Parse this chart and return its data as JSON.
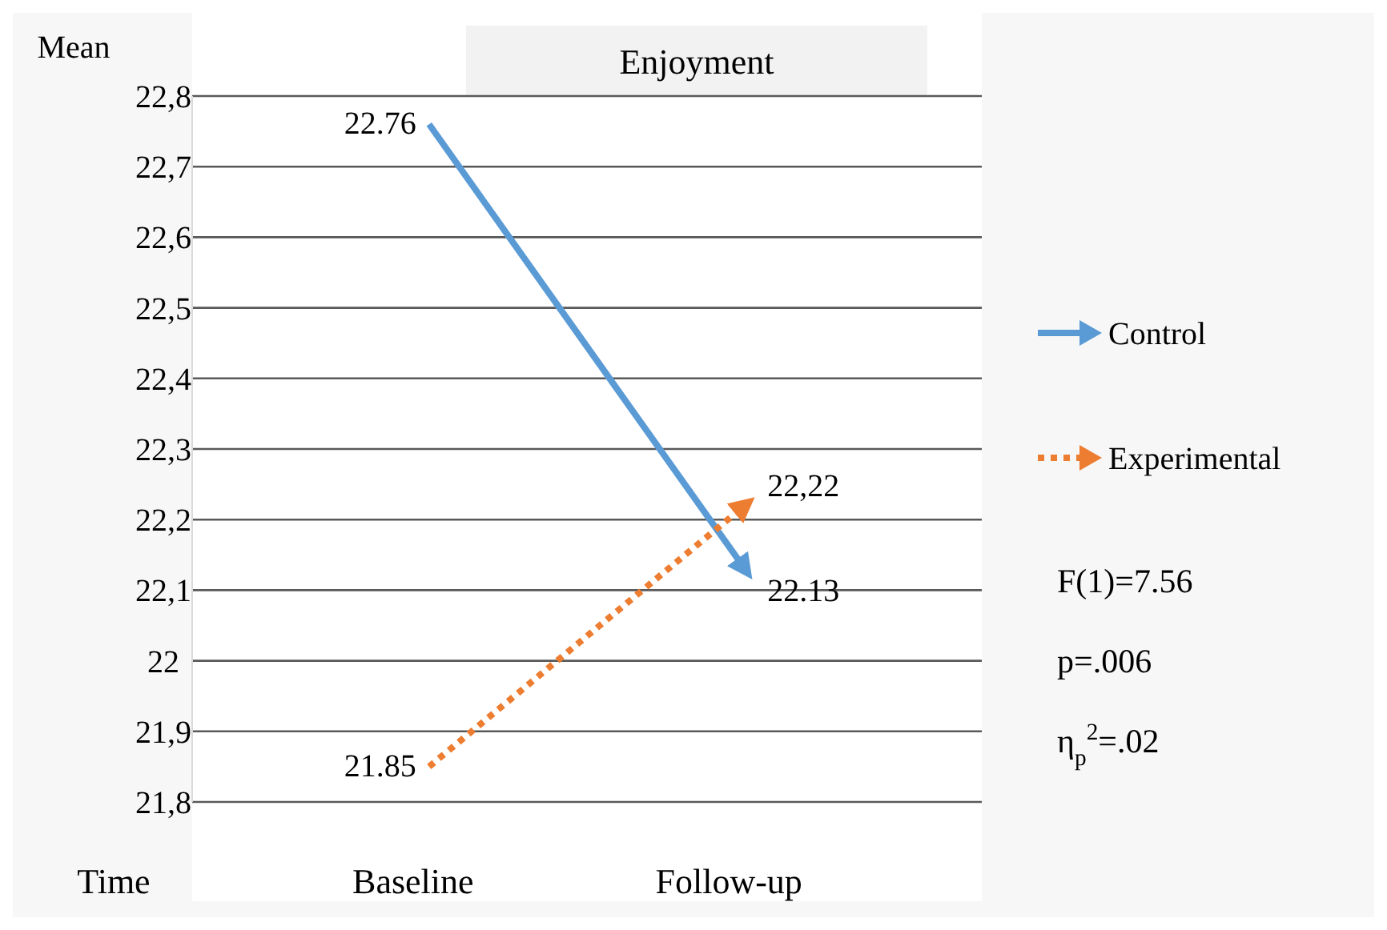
{
  "chart_data": {
    "type": "line",
    "title": "Enjoyment",
    "xlabel": "Time",
    "ylabel": "Mean",
    "categories": [
      "Baseline",
      "Follow-up"
    ],
    "series": [
      {
        "name": "Control",
        "color": "#5b9bd5",
        "values": [
          22.76,
          22.13
        ],
        "value_labels": [
          "22.76",
          "22.13"
        ],
        "line_style": "solid"
      },
      {
        "name": "Experimental",
        "color": "#ed7d31",
        "values": [
          21.85,
          22.22
        ],
        "value_labels": [
          "21.85",
          "22,22"
        ],
        "line_style": "dotted"
      }
    ],
    "ylim": [
      21.8,
      22.8
    ],
    "yticks": [
      {
        "value": 21.8,
        "label": "21,8"
      },
      {
        "value": 21.9,
        "label": "21,9"
      },
      22,
      {
        "value": 22.1,
        "label": "22,1"
      },
      {
        "value": 22.2,
        "label": "22,2"
      },
      {
        "value": 22.3,
        "label": "22,3"
      },
      {
        "value": 22.4,
        "label": "22,4"
      },
      {
        "value": 22.5,
        "label": "22,5"
      },
      {
        "value": 22.6,
        "label": "22,6"
      },
      {
        "value": 22.7,
        "label": "22,7"
      },
      {
        "value": 22.8,
        "label": "22,8"
      }
    ],
    "grid": "y",
    "legend": "right",
    "marker": "none",
    "annotations": [
      "F(1)=7.56",
      "p=.006",
      "η$_{p}$$^{2}$=.02"
    ]
  }
}
